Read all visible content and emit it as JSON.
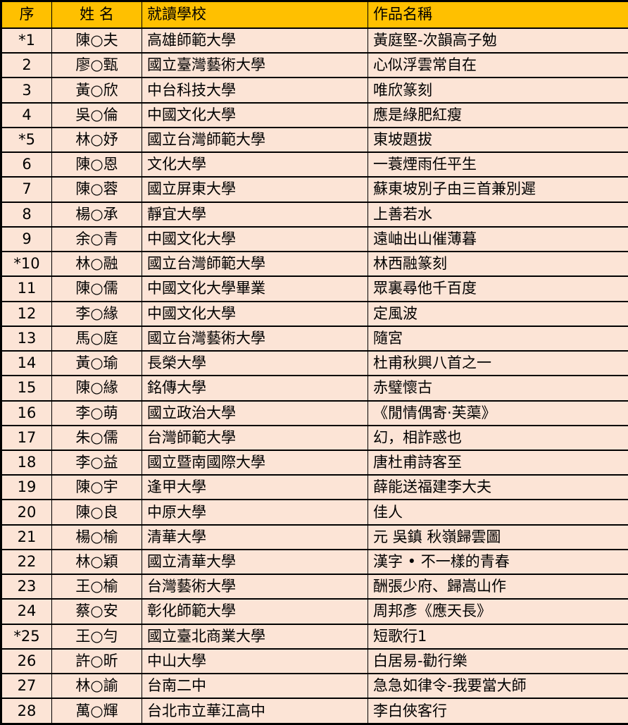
{
  "table": {
    "colors": {
      "header_bg": "#FFC000",
      "body_bg": "#FCE4D6",
      "border": "#000000",
      "text": "#000000"
    },
    "columns": [
      {
        "key": "no",
        "label": "序",
        "align": "center"
      },
      {
        "key": "name",
        "label": "姓 名",
        "align": "center"
      },
      {
        "key": "school",
        "label": "就讀學校",
        "align": "left"
      },
      {
        "key": "title",
        "label": "作品名稱",
        "align": "left"
      }
    ],
    "rows": [
      {
        "no": "*1",
        "name": "陳○夫",
        "school": "高雄師範大學",
        "title": "黃庭堅-次韻高子勉"
      },
      {
        "no": "2",
        "name": "廖○甄",
        "school": "國立臺灣藝術大學",
        "title": "心似浮雲常自在"
      },
      {
        "no": "3",
        "name": "黃○欣",
        "school": "中台科技大學",
        "title": "唯欣篆刻"
      },
      {
        "no": "4",
        "name": "吳○倫",
        "school": "中國文化大學",
        "title": "應是綠肥紅瘦"
      },
      {
        "no": "*5",
        "name": "林○妤",
        "school": "國立台灣師範大學",
        "title": "東坡題拔"
      },
      {
        "no": "6",
        "name": "陳○恩",
        "school": "文化大學",
        "title": "一蓑煙雨任平生"
      },
      {
        "no": "7",
        "name": "陳○蓉",
        "school": "國立屏東大學",
        "title": "蘇東坡別子由三首兼別遲"
      },
      {
        "no": "8",
        "name": "楊○承",
        "school": "靜宜大學",
        "title": "上善若水"
      },
      {
        "no": "9",
        "name": "余○青",
        "school": "中國文化大學",
        "title": "遠岫出山催薄暮"
      },
      {
        "no": "*10",
        "name": "林○融",
        "school": "國立台灣師範大學",
        "title": "林西融篆刻"
      },
      {
        "no": "11",
        "name": "陳○儒",
        "school": "中國文化大學畢業",
        "title": "眾裏尋他千百度"
      },
      {
        "no": "12",
        "name": "李○緣",
        "school": "中國文化大學",
        "title": "定風波"
      },
      {
        "no": "13",
        "name": "馬○庭",
        "school": "國立台灣藝術大學",
        "title": "隨宮"
      },
      {
        "no": "14",
        "name": "黃○瑜",
        "school": "長榮大學",
        "title": "杜甫秋興八首之一"
      },
      {
        "no": "15",
        "name": "陳○緣",
        "school": "銘傳大學",
        "title": "赤璧懷古"
      },
      {
        "no": "16",
        "name": "李○萌",
        "school": "國立政治大學",
        "title": "《閒情偶寄·芙蕖》"
      },
      {
        "no": "17",
        "name": "朱○儒",
        "school": "台灣師範大學",
        "title": "幻，相詐惑也"
      },
      {
        "no": "18",
        "name": "李○益",
        "school": "國立暨南國際大學",
        "title": "唐杜甫詩客至"
      },
      {
        "no": "19",
        "name": "陳○宇",
        "school": "逢甲大學",
        "title": "薛能送福建李大夫"
      },
      {
        "no": "20",
        "name": "陳○良",
        "school": "中原大學",
        "title": "佳人"
      },
      {
        "no": "21",
        "name": "楊○榆",
        "school": "清華大學",
        "title": "元 吳鎮 秋嶺歸雲圖"
      },
      {
        "no": "22",
        "name": "林○穎",
        "school": "國立清華大學",
        "title": "漢字 • 不一樣的青春"
      },
      {
        "no": "23",
        "name": "王○榆",
        "school": "台灣藝術大學",
        "title": "酬張少府、歸嵩山作"
      },
      {
        "no": "24",
        "name": "蔡○安",
        "school": "彰化師範大學",
        "title": "周邦彥《應天長》"
      },
      {
        "no": "*25",
        "name": "王○勻",
        "school": "國立臺北商業大學",
        "title": "短歌行1"
      },
      {
        "no": "26",
        "name": "許○昕",
        "school": "中山大學",
        "title": "白居易-勸行樂"
      },
      {
        "no": "27",
        "name": "林○諭",
        "school": "台南二中",
        "title": "急急如律令-我要當大師"
      },
      {
        "no": "28",
        "name": "萬○輝",
        "school": "台北市立華江高中",
        "title": "李白俠客行"
      }
    ]
  }
}
